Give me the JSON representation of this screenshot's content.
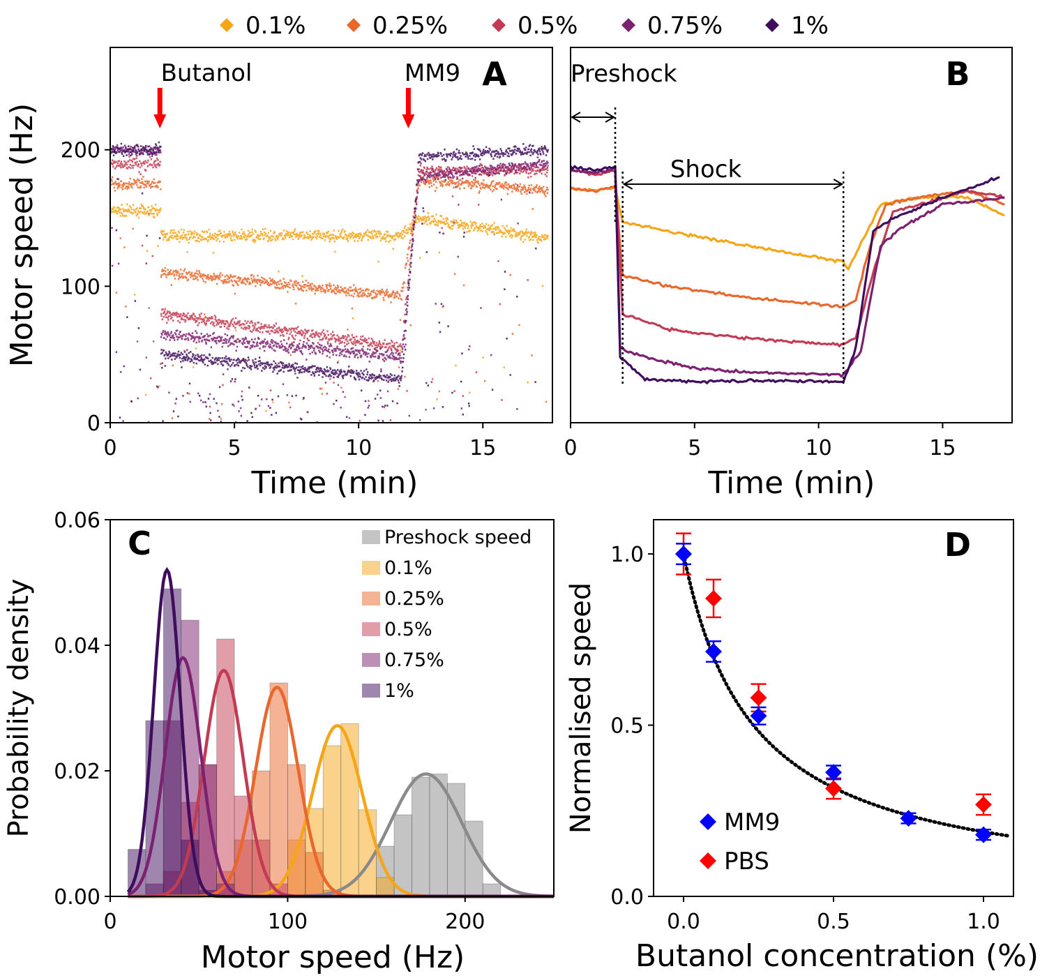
{
  "colors": {
    "c01": "#f6a517",
    "c025": "#e9672b",
    "c05": "#c33b52",
    "c075": "#7c2070",
    "c1": "#3f0d5e",
    "grey": "#8a8a8a",
    "arrow_red": "#ff0000",
    "mm9_blue": "#0000ff",
    "pbs_red": "#ff0000"
  },
  "legend_top": {
    "items": [
      {
        "label": "0.1%",
        "color_key": "c01"
      },
      {
        "label": "0.25%",
        "color_key": "c025"
      },
      {
        "label": "0.5%",
        "color_key": "c05"
      },
      {
        "label": "0.75%",
        "color_key": "c075"
      },
      {
        "label": "1%",
        "color_key": "c1"
      }
    ]
  },
  "chart_data": [
    {
      "panel": "A",
      "type": "scatter",
      "title": "A",
      "xlabel": "Time (min)",
      "ylabel": "Motor speed (Hz)",
      "xlim": [
        0,
        17.8
      ],
      "ylim": [
        0,
        275
      ],
      "xticks": [
        0,
        5,
        10,
        15
      ],
      "yticks": [
        0,
        100,
        200
      ],
      "annotations": [
        {
          "text": "Butanol",
          "x": 2.0
        },
        {
          "text": "MM9",
          "x": 12.0
        }
      ],
      "series": [
        {
          "name": "0.1%",
          "pre": 155,
          "shock": 137,
          "post": 150,
          "post_end": 135
        },
        {
          "name": "0.25%",
          "pre": 175,
          "shock": 110,
          "shock_end": 93,
          "post": 178,
          "post_end": 170
        },
        {
          "name": "0.5%",
          "pre": 190,
          "shock": 80,
          "shock_end": 55,
          "post": 185,
          "post_end": 185
        },
        {
          "name": "0.75%",
          "pre": 200,
          "shock": 65,
          "shock_end": 48,
          "post": 180,
          "post_end": 190
        },
        {
          "name": "1%",
          "pre": 200,
          "shock": 50,
          "shock_end": 32,
          "post": 195,
          "post_end": 200
        }
      ]
    },
    {
      "panel": "B",
      "type": "line",
      "title": "B",
      "xlabel": "Time (min)",
      "xlim": [
        0,
        17.8
      ],
      "xticks": [
        0,
        5,
        10,
        15
      ],
      "annotations": [
        {
          "text": "Preshock",
          "x_start": 0,
          "x_end": 1.8
        },
        {
          "text": "Shock",
          "x_start": 2.1,
          "x_end": 11.0
        }
      ],
      "series": [
        {
          "name": "0.1%",
          "x": [
            0,
            1,
            1.8,
            2.1,
            4,
            7,
            11,
            11.2,
            11.8,
            12.5,
            14,
            16,
            17.5
          ],
          "y": [
            172,
            170,
            172,
            147,
            140,
            130,
            118,
            112,
            135,
            160,
            165,
            165,
            152
          ]
        },
        {
          "name": "0.25%",
          "x": [
            0,
            1,
            1.8,
            2.1,
            4,
            7,
            11,
            11.5,
            12,
            12.7,
            14,
            16,
            17.5
          ],
          "y": [
            172,
            170,
            173,
            108,
            100,
            92,
            85,
            90,
            125,
            160,
            165,
            170,
            160
          ]
        },
        {
          "name": "0.5%",
          "x": [
            0,
            1,
            1.8,
            2.1,
            4,
            7,
            11,
            11.5,
            12.2,
            13,
            14.5,
            16,
            17.5
          ],
          "y": [
            185,
            182,
            185,
            80,
            68,
            62,
            57,
            62,
            110,
            155,
            162,
            170,
            165
          ]
        },
        {
          "name": "0.75%",
          "x": [
            0,
            1,
            1.8,
            2.0,
            3,
            5,
            7,
            11,
            11.7,
            12.5,
            13.5,
            15,
            17.5
          ],
          "y": [
            185,
            183,
            186,
            55,
            48,
            40,
            37,
            35,
            52,
            130,
            145,
            160,
            165
          ]
        },
        {
          "name": "1%",
          "x": [
            0,
            1,
            1.8,
            2.0,
            3,
            5,
            7,
            11,
            11.5,
            12.2,
            13,
            15,
            17.3
          ],
          "y": [
            187,
            185,
            188,
            48,
            32,
            30,
            31,
            30,
            55,
            140,
            150,
            165,
            180
          ]
        }
      ]
    },
    {
      "panel": "C",
      "type": "bar",
      "title": "C",
      "xlabel": "Motor speed (Hz)",
      "ylabel": "Probability density",
      "xlim": [
        0,
        250
      ],
      "ylim": [
        0,
        0.06
      ],
      "xticks": [
        0,
        100,
        200
      ],
      "yticks": [
        "0.00",
        "0.02",
        "0.04",
        "0.06"
      ],
      "legend": [
        "Preshock speed",
        "0.1%",
        "0.25%",
        "0.5%",
        "0.75%",
        "1%"
      ],
      "histograms": [
        {
          "name": "Preshock speed",
          "bins": [
            [
              150,
              0.008
            ],
            [
              160,
              0.013
            ],
            [
              170,
              0.019
            ],
            [
              180,
              0.0195
            ],
            [
              190,
              0.018
            ],
            [
              200,
              0.012
            ],
            [
              210,
              0.002
            ]
          ]
        },
        {
          "name": "0.1%",
          "bins": [
            [
              100,
              0.009
            ],
            [
              110,
              0.014
            ],
            [
              120,
              0.024
            ],
            [
              130,
              0.0275
            ],
            [
              140,
              0.0138
            ],
            [
              150,
              0.003
            ]
          ]
        },
        {
          "name": "0.25%",
          "bins": [
            [
              60,
              0.004
            ],
            [
              70,
              0.009
            ],
            [
              80,
              0.02
            ],
            [
              90,
              0.034
            ],
            [
              100,
              0.021
            ],
            [
              110,
              0.007
            ],
            [
              120,
              0.001
            ]
          ]
        },
        {
          "name": "0.5%",
          "bins": [
            [
              30,
              0.004
            ],
            [
              40,
              0.015
            ],
            [
              50,
              0.021
            ],
            [
              60,
              0.041
            ],
            [
              70,
              0.016
            ],
            [
              80,
              0.009
            ],
            [
              90,
              0.002
            ]
          ]
        },
        {
          "name": "0.75%",
          "bins": [
            [
              20,
              0.002
            ],
            [
              30,
              0.028
            ],
            [
              40,
              0.044
            ],
            [
              50,
              0.021
            ],
            [
              60,
              0.002
            ]
          ]
        },
        {
          "name": "1%",
          "bins": [
            [
              10,
              0.0075
            ],
            [
              20,
              0.028
            ],
            [
              30,
              0.049
            ],
            [
              40,
              0.009
            ],
            [
              50,
              0.001
            ]
          ]
        }
      ],
      "gaussians": [
        {
          "name": "Preshock speed",
          "mean": 178,
          "sd": 20,
          "peak": 0.0195
        },
        {
          "name": "0.1%",
          "mean": 128,
          "sd": 14,
          "peak": 0.0272
        },
        {
          "name": "0.25%",
          "mean": 94,
          "sd": 12,
          "peak": 0.0333
        },
        {
          "name": "0.5%",
          "mean": 64,
          "sd": 11,
          "peak": 0.036
        },
        {
          "name": "0.75%",
          "mean": 41,
          "sd": 10,
          "peak": 0.038
        },
        {
          "name": "1%",
          "mean": 32,
          "sd": 7.5,
          "peak": 0.052
        }
      ]
    },
    {
      "panel": "D",
      "type": "scatter",
      "title": "D",
      "xlabel": "Butanol concentration (%)",
      "ylabel": "Normalised speed",
      "xlim": [
        -0.1,
        1.1
      ],
      "ylim": [
        0,
        1.1
      ],
      "xticks": [
        "0.0",
        "0.5",
        "1.0"
      ],
      "yticks": [
        "0.0",
        "0.5",
        "1.0"
      ],
      "series": [
        {
          "name": "MM9",
          "x": [
            0,
            0.1,
            0.25,
            0.5,
            0.75,
            1.0
          ],
          "y": [
            1.0,
            0.715,
            0.527,
            0.362,
            0.228,
            0.18
          ],
          "err": [
            0.03,
            0.03,
            0.025,
            0.02,
            0.015,
            0.015
          ]
        },
        {
          "name": "PBS",
          "x": [
            0,
            0.1,
            0.25,
            0.5,
            1.0
          ],
          "y": [
            1.0,
            0.87,
            0.58,
            0.315,
            0.268
          ],
          "err": [
            0.06,
            0.055,
            0.04,
            0.03,
            0.03
          ]
        }
      ],
      "fit": {
        "style": "dotted",
        "formula": "1/(1+k*x)",
        "k": 4.3
      }
    }
  ]
}
